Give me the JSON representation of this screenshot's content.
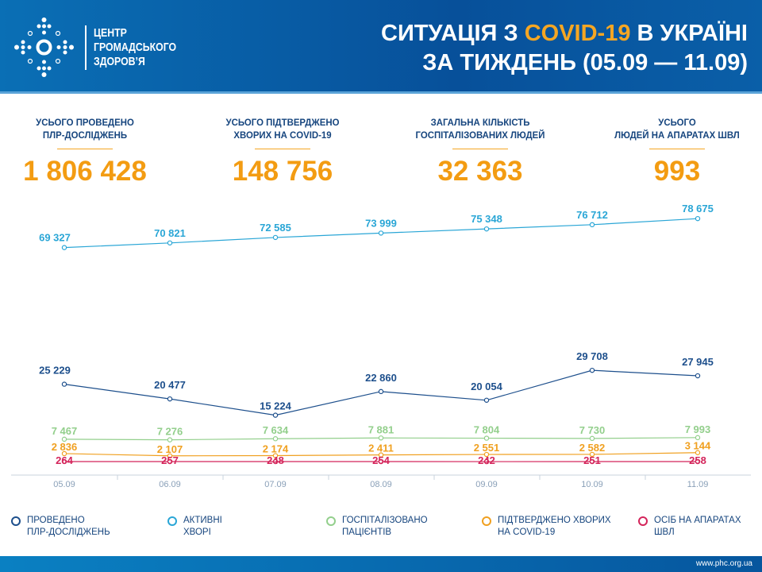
{
  "header": {
    "org": [
      "ЦЕНТР",
      "ГРОМАДСЬКОГО",
      "ЗДОРОВ’Я"
    ],
    "title_line1_pre": "СИТУАЦІЯ З ",
    "title_line1_hl": "COVID-19",
    "title_line1_post": " В УКРАЇНІ",
    "title_line2": "ЗА ТИЖДЕНЬ (05.09 — 11.09)"
  },
  "stats": [
    {
      "label1": "УСЬОГО ПРОВЕДЕНО",
      "label2": "ПЛР-ДОСЛІДЖЕНЬ",
      "value": "1 806 428"
    },
    {
      "label1": "УСЬОГО ПІДТВЕРДЖЕНО",
      "label2": "ХВОРИХ НА COVID-19",
      "value": "148 756"
    },
    {
      "label1": "ЗАГАЛЬНА КІЛЬКІСТЬ",
      "label2": "ГОСПІТАЛІЗОВАНИХ ЛЮДЕЙ",
      "value": "32 363"
    },
    {
      "label1": "УСЬОГО",
      "label2": "ЛЮДЕЙ НА АПАРАТАХ ШВЛ",
      "value": "993"
    }
  ],
  "chart_data": {
    "type": "line",
    "categories": [
      "05.09",
      "06.09",
      "07.09",
      "08.09",
      "09.09",
      "10.09",
      "11.09"
    ],
    "grid": false,
    "legend_placement": "bottom",
    "series": [
      {
        "name": "ПРОВЕДЕНО ПЛР-ДОСЛІДЖЕНЬ",
        "color": "#1d4f8c",
        "values": [
          25229,
          20477,
          15224,
          22860,
          20054,
          29708,
          27945
        ]
      },
      {
        "name": "АКТИВНІ ХВОРІ",
        "color": "#2aa6d6",
        "values": [
          69327,
          70821,
          72585,
          73999,
          75348,
          76712,
          78675
        ]
      },
      {
        "name": "ГОСПІТАЛІЗОВАНО ПАЦІЄНТІВ",
        "color": "#93cf8c",
        "values": [
          7467,
          7276,
          7634,
          7881,
          7804,
          7730,
          7993
        ]
      },
      {
        "name": "ПІДТВЕРДЖЕНО ХВОРИХ НА COVID-19",
        "color": "#f0a020",
        "values": [
          2836,
          2107,
          2174,
          2411,
          2551,
          2582,
          3144
        ]
      },
      {
        "name": "ОСІБ НА АПАРАТАХ ШВЛ",
        "color": "#d4245a",
        "values": [
          264,
          257,
          248,
          254,
          242,
          251,
          258
        ]
      }
    ]
  },
  "legend": [
    {
      "line1": "ПРОВЕДЕНО",
      "line2": "ПЛР-ДОСЛІДЖЕНЬ"
    },
    {
      "line1": "АКТИВНІ",
      "line2": "ХВОРІ"
    },
    {
      "line1": "ГОСПІТАЛІЗОВАНО",
      "line2": "ПАЦІЄНТІВ"
    },
    {
      "line1": "ПІДТВЕРДЖЕНО ХВОРИХ",
      "line2": "НА COVID-19"
    },
    {
      "line1": "ОСІБ НА АПАРАТАХ",
      "line2": "ШВЛ"
    }
  ],
  "footer": {
    "url": "www.phc.org.ua"
  }
}
